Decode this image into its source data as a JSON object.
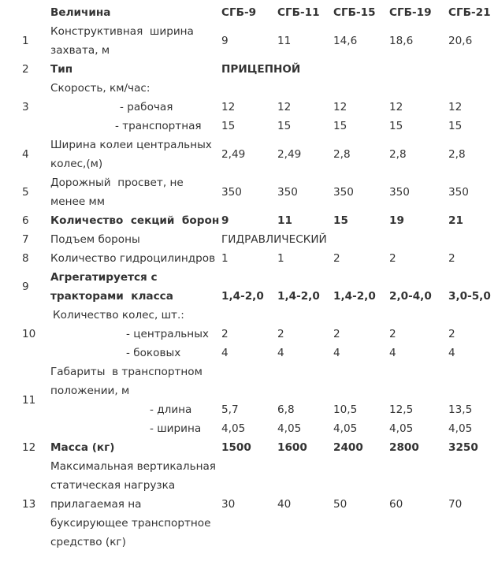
{
  "header": {
    "label": "Величина",
    "models": [
      "СГБ-9",
      "СГБ-11",
      "СГБ-15",
      "СГБ-19",
      "СГБ-21"
    ]
  },
  "rows": [
    {
      "num": "1",
      "lines": [
        {
          "text": "Конструктивная  ширина"
        },
        {
          "text": "захвата, м"
        }
      ],
      "values": [
        "9",
        "11",
        "14,6",
        "18,6",
        "20,6"
      ]
    },
    {
      "num": "2",
      "bold": true,
      "lines": [
        {
          "text": "Тип",
          "span": "ПРИЦЕПНОЙ"
        }
      ]
    },
    {
      "num": "3",
      "lines": [
        {
          "text": "Скорость, км/час:"
        },
        {
          "text": "- рабочая",
          "values": [
            "12",
            "12",
            "12",
            "12",
            "12"
          ]
        },
        {
          "text": "- транспортная",
          "values": [
            "15",
            "15",
            "15",
            "15",
            "15"
          ]
        }
      ]
    },
    {
      "num": "4",
      "lines": [
        {
          "text": "Ширина колеи центральных"
        },
        {
          "text": "колес,(м)"
        }
      ],
      "values": [
        "2,49",
        "2,49",
        "2,8",
        "2,8",
        "2,8"
      ]
    },
    {
      "num": "5",
      "lines": [
        {
          "text": "Дорожный  просвет, не"
        },
        {
          "text": "менее мм"
        }
      ],
      "values": [
        "350",
        "350",
        "350",
        "350",
        "350"
      ]
    },
    {
      "num": "6",
      "bold": true,
      "lines": [
        {
          "text": "Количество  секций  борон",
          "values": [
            "9",
            "11",
            "15",
            "19",
            "21"
          ]
        }
      ]
    },
    {
      "num": "7",
      "lines": [
        {
          "text": "Подъем бороны",
          "span": "ГИДРАВЛИЧЕСКИЙ"
        }
      ]
    },
    {
      "num": "8",
      "lines": [
        {
          "text": "Количество гидроцилиндров",
          "values": [
            "1",
            "1",
            "2",
            "2",
            "2"
          ]
        }
      ]
    },
    {
      "num": "9",
      "bold": true,
      "lines": [
        {
          "text": "Агрегатируется с"
        },
        {
          "text": "тракторами  класса",
          "values": [
            "1,4-2,0",
            "1,4-2,0",
            "1,4-2,0",
            "2,0-4,0",
            "3,0-5,0"
          ]
        }
      ]
    },
    {
      "num": "10",
      "lines": [
        {
          "text": "Количество колес, шт.:"
        },
        {
          "text": "- центральных",
          "values": [
            "2",
            "2",
            "2",
            "2",
            "2"
          ]
        },
        {
          "text": "- боковых",
          "values": [
            "4",
            "4",
            "4",
            "4",
            "4"
          ]
        }
      ]
    },
    {
      "num": "11",
      "lines": [
        {
          "text": "Габариты  в транспортном"
        },
        {
          "text": "положении, м"
        },
        {
          "text": "- длина",
          "values": [
            "5,7",
            "6,8",
            "10,5",
            "12,5",
            "13,5"
          ]
        },
        {
          "text": "- ширина",
          "values": [
            "4,05",
            "4,05",
            "4,05",
            "4,05",
            "4,05"
          ]
        }
      ]
    },
    {
      "num": "12",
      "bold": true,
      "lines": [
        {
          "text": "Масса (кг)",
          "values": [
            "1500",
            "1600",
            "2400",
            "2800",
            "3250"
          ]
        }
      ]
    },
    {
      "num": "13",
      "lines": [
        {
          "text": "Максимальная вертикальная"
        },
        {
          "text": "статическая нагрузка"
        },
        {
          "text": "прилагаемая на"
        },
        {
          "text": "буксирующее транспортное"
        },
        {
          "text": "средство (кг)"
        }
      ],
      "values": [
        "30",
        "40",
        "50",
        "60",
        "70"
      ]
    }
  ]
}
